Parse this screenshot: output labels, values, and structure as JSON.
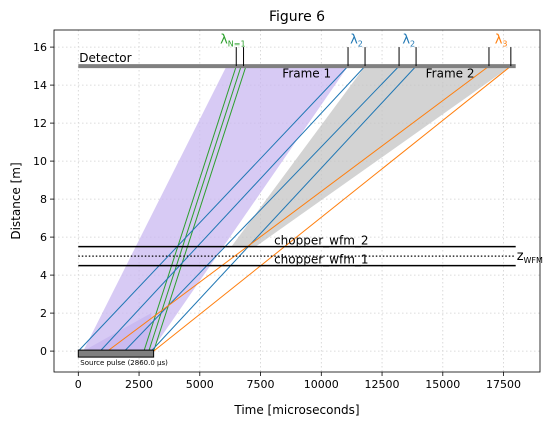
{
  "chart_data": {
    "type": "line",
    "title": "Figure 6",
    "xlabel": "Time [microseconds]",
    "ylabel": "Distance [m]",
    "xlim": [
      -1000,
      19000
    ],
    "ylim": [
      -1.1,
      16.9
    ],
    "x_ticks": [
      0,
      2500,
      5000,
      7500,
      10000,
      12500,
      15000,
      17500
    ],
    "y_ticks": [
      0,
      2,
      4,
      6,
      8,
      10,
      12,
      14,
      16
    ],
    "grid": true,
    "grid_style": "dotted",
    "colors": {
      "green": "#2ca02c",
      "blue": "#1f77b4",
      "orange": "#ff7f0e",
      "detector": "#808080",
      "frame1_fill": "#c9b8f0",
      "frame2_fill": "#c4c4c4",
      "source_fill": "#808080"
    },
    "detector": {
      "label": "Detector",
      "distance": 15.0,
      "t_start": 0,
      "t_end": 18000
    },
    "source_pulse": {
      "label": "Source pulse (2860.0 μs)",
      "t_start": 0,
      "t_end": 3100
    },
    "choppers": [
      {
        "label": "chopper_wfm_2",
        "distance": 5.5,
        "t_start": 0,
        "t_end": 18000
      },
      {
        "label": "chopper_wfm_1",
        "distance": 4.5,
        "t_start": 0,
        "t_end": 18000
      }
    ],
    "wfm_line": {
      "label": "z",
      "label_sub": "WFM",
      "distance": 5.0,
      "t_start": 0,
      "t_end": 18000
    },
    "frames": [
      {
        "label": "Frame 1",
        "label_t": 9400,
        "label_d": 14.6,
        "color": "frame1_fill",
        "polygon": [
          [
            200,
            0
          ],
          [
            3000,
            0
          ],
          [
            11100,
            15
          ],
          [
            6100,
            15
          ]
        ]
      },
      {
        "label": "Frame 2",
        "label_t": 15300,
        "label_d": 14.6,
        "color": "frame2_fill",
        "polygon": [
          [
            6300,
            5.5
          ],
          [
            11800,
            15
          ],
          [
            17800,
            15
          ],
          [
            7300,
            5.5
          ]
        ]
      }
    ],
    "wavelength_markers": [
      {
        "label": "λ",
        "sub": "N=1",
        "color": "green",
        "t1": 6500,
        "t2": 6800,
        "label_t": 6000
      },
      {
        "label": "λ",
        "sub": "2",
        "color": "blue",
        "t1": 11100,
        "t2": 11800,
        "label_t": 11350
      },
      {
        "label": "λ",
        "sub": "2",
        "color": "blue",
        "t1": 13200,
        "t2": 13900,
        "label_t": 13500
      },
      {
        "label": "λ",
        "sub": "3",
        "color": "orange",
        "t1": 16900,
        "t2": 17800,
        "label_t": 17300
      }
    ],
    "series": [
      {
        "color": "green",
        "points": [
          [
            2700,
            0
          ],
          [
            6500,
            15
          ]
        ]
      },
      {
        "color": "green",
        "points": [
          [
            2900,
            0
          ],
          [
            6700,
            15
          ]
        ]
      },
      {
        "color": "green",
        "points": [
          [
            3100,
            0
          ],
          [
            6900,
            15
          ]
        ]
      },
      {
        "color": "blue",
        "points": [
          [
            0,
            0
          ],
          [
            11100,
            15
          ]
        ]
      },
      {
        "color": "blue",
        "points": [
          [
            900,
            0
          ],
          [
            11800,
            15
          ]
        ]
      },
      {
        "color": "blue",
        "points": [
          [
            1900,
            0
          ],
          [
            13200,
            15
          ]
        ]
      },
      {
        "color": "blue",
        "points": [
          [
            3000,
            0
          ],
          [
            13900,
            15
          ]
        ]
      },
      {
        "color": "orange",
        "points": [
          [
            1200,
            0
          ],
          [
            16900,
            15
          ]
        ]
      },
      {
        "color": "orange",
        "points": [
          [
            3100,
            0
          ],
          [
            17800,
            15
          ]
        ]
      }
    ]
  }
}
